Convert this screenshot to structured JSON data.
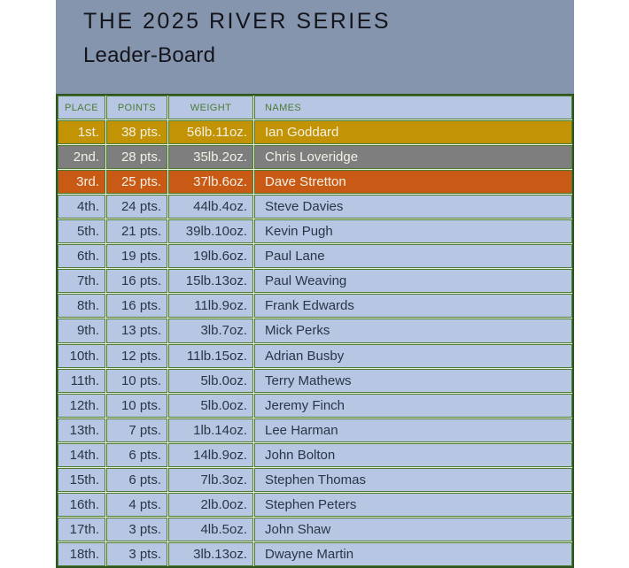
{
  "header": {
    "title": "THE 2025 RIVER SERIES",
    "subtitle": "Leader-Board"
  },
  "table": {
    "columns": [
      "PLACE",
      "POINTS",
      "WEIGHT",
      "NAMES"
    ],
    "rows": [
      {
        "place": "1st.",
        "points": "38 pts.",
        "weight": "56lb.11oz.",
        "name": "Ian Goddard",
        "rank_style": "gold"
      },
      {
        "place": "2nd.",
        "points": "28 pts.",
        "weight": "35lb.2oz.",
        "name": "Chris Loveridge",
        "rank_style": "silver"
      },
      {
        "place": "3rd.",
        "points": "25 pts.",
        "weight": "37lb.6oz.",
        "name": "Dave Stretton",
        "rank_style": "bronze"
      },
      {
        "place": "4th.",
        "points": "24 pts.",
        "weight": "44lb.4oz.",
        "name": "Steve Davies",
        "rank_style": "default"
      },
      {
        "place": "5th.",
        "points": "21 pts.",
        "weight": "39lb.10oz.",
        "name": "Kevin Pugh",
        "rank_style": "default"
      },
      {
        "place": "6th.",
        "points": "19 pts.",
        "weight": "19lb.6oz.",
        "name": "Paul Lane",
        "rank_style": "default"
      },
      {
        "place": "7th.",
        "points": "16 pts.",
        "weight": "15lb.13oz.",
        "name": "Paul Weaving",
        "rank_style": "default"
      },
      {
        "place": "8th.",
        "points": "16 pts.",
        "weight": "11lb.9oz.",
        "name": "Frank Edwards",
        "rank_style": "default"
      },
      {
        "place": "9th.",
        "points": "13 pts.",
        "weight": "3lb.7oz.",
        "name": "Mick Perks",
        "rank_style": "default"
      },
      {
        "place": "10th.",
        "points": "12 pts.",
        "weight": "11lb.15oz.",
        "name": "Adrian Busby",
        "rank_style": "default"
      },
      {
        "place": "11th.",
        "points": "10 pts.",
        "weight": "5lb.0oz.",
        "name": "Terry Mathews",
        "rank_style": "default"
      },
      {
        "place": "12th.",
        "points": "10 pts.",
        "weight": "5lb.0oz.",
        "name": "Jeremy Finch",
        "rank_style": "default"
      },
      {
        "place": "13th.",
        "points": "7 pts.",
        "weight": "1lb.14oz.",
        "name": "Lee Harman",
        "rank_style": "default"
      },
      {
        "place": "14th.",
        "points": "6 pts.",
        "weight": "14lb.9oz.",
        "name": "John Bolton",
        "rank_style": "default"
      },
      {
        "place": "15th.",
        "points": "6 pts.",
        "weight": "7lb.3oz.",
        "name": "Stephen Thomas",
        "rank_style": "default"
      },
      {
        "place": "16th.",
        "points": "4 pts.",
        "weight": "2lb.0oz.",
        "name": "Stephen Peters",
        "rank_style": "default"
      },
      {
        "place": "17th.",
        "points": "3 pts.",
        "weight": "4lb.5oz.",
        "name": "John Shaw",
        "rank_style": "default"
      },
      {
        "place": "18th.",
        "points": "3 pts.",
        "weight": "3lb.13oz.",
        "name": "Dwayne Martin",
        "rank_style": "default"
      }
    ]
  },
  "colors": {
    "panel_bg": "#8495AD",
    "title_text": "#14141C",
    "row_default_bg": "#B6C6E3",
    "gold_bg": "#C29305",
    "silver_bg": "#7E7E7E",
    "bronze_bg": "#C85A16",
    "grid_line": "#4E7B33",
    "outer_border": "#2F5420",
    "gap_line": "#E9EFDC",
    "header_text": "#4E7B33",
    "row_text": "#2B3547",
    "highlight_text": "#F2F0E4"
  }
}
